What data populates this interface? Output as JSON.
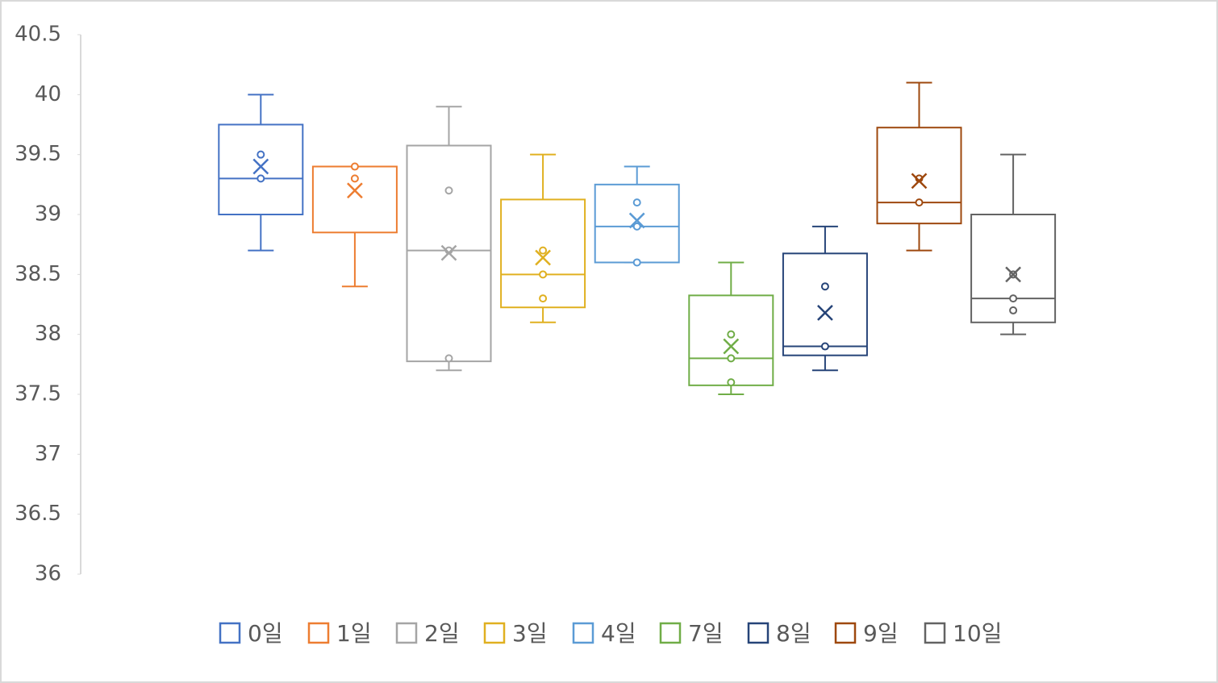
{
  "chart_data": {
    "type": "box",
    "ylim": [
      36,
      40.5
    ],
    "yticks": [
      36,
      36.5,
      37,
      37.5,
      38,
      38.5,
      39,
      39.5,
      40,
      40.5
    ],
    "series": [
      {
        "name": "0일",
        "color": "#4472c4",
        "min": 38.7,
        "q1": 39.0,
        "median": 39.3,
        "q3": 39.75,
        "max": 40.0,
        "mean": 39.4,
        "points": [
          39.5,
          39.3
        ]
      },
      {
        "name": "1일",
        "color": "#ed7d31",
        "min": 38.4,
        "q1": 38.85,
        "median": 39.4,
        "q3": 39.4,
        "max": 39.4,
        "mean": 39.2,
        "points": [
          39.4,
          39.3
        ]
      },
      {
        "name": "2일",
        "color": "#a5a5a5",
        "min": 37.7,
        "q1": 37.775,
        "median": 38.7,
        "q3": 39.575,
        "max": 39.9,
        "mean": 38.68,
        "points": [
          39.2,
          38.7,
          37.8
        ]
      },
      {
        "name": "3일",
        "color": "#e0b020",
        "min": 38.1,
        "q1": 38.225,
        "median": 38.5,
        "q3": 39.125,
        "max": 39.5,
        "mean": 38.64,
        "points": [
          38.7,
          38.5,
          38.3
        ]
      },
      {
        "name": "4일",
        "color": "#5b9bd5",
        "min": 38.6,
        "q1": 38.6,
        "median": 38.9,
        "q3": 39.25,
        "max": 39.4,
        "mean": 38.95,
        "points": [
          39.1,
          38.9,
          38.6
        ]
      },
      {
        "name": "7일",
        "color": "#70ad47",
        "min": 37.5,
        "q1": 37.575,
        "median": 37.8,
        "q3": 38.325,
        "max": 38.6,
        "mean": 37.9,
        "points": [
          38.0,
          37.8,
          37.6
        ]
      },
      {
        "name": "8일",
        "color": "#264478",
        "min": 37.7,
        "q1": 37.825,
        "median": 37.9,
        "q3": 38.675,
        "max": 38.9,
        "mean": 38.18,
        "points": [
          38.4,
          37.9
        ]
      },
      {
        "name": "9일",
        "color": "#9e480e",
        "min": 38.7,
        "q1": 38.925,
        "median": 39.1,
        "q3": 39.725,
        "max": 40.1,
        "mean": 39.28,
        "points": [
          39.3,
          39.1
        ]
      },
      {
        "name": "10일",
        "color": "#636363",
        "min": 38.0,
        "q1": 38.1,
        "median": 38.3,
        "q3": 39.0,
        "max": 39.5,
        "mean": 38.5,
        "points": [
          38.5,
          38.3,
          38.2
        ]
      }
    ]
  }
}
